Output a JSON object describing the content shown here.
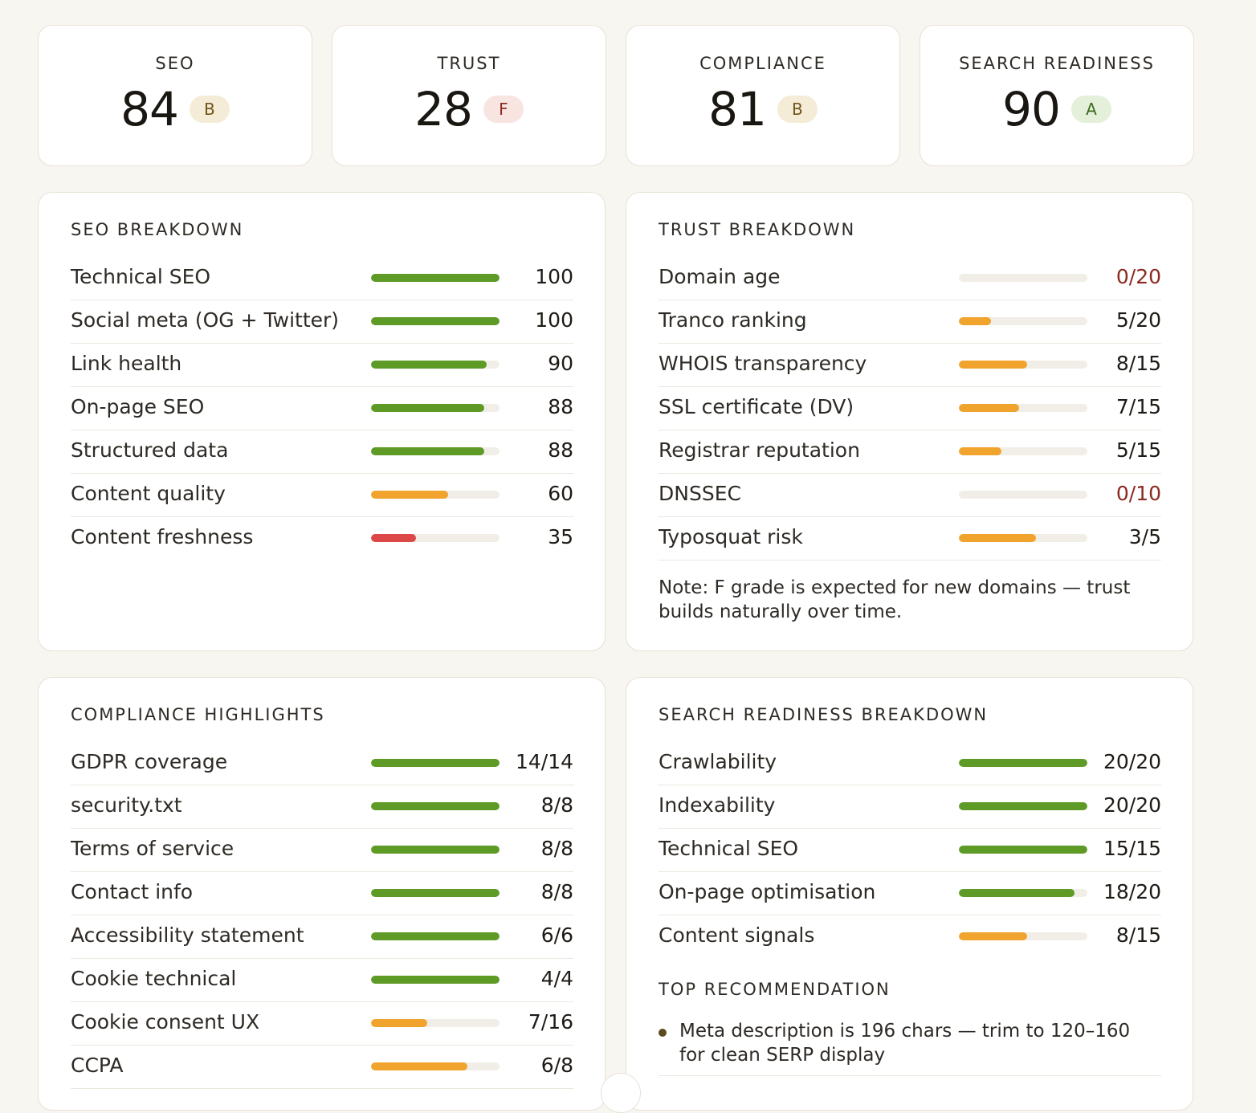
{
  "scores": [
    {
      "label": "SEO",
      "value": "84",
      "grade": "B"
    },
    {
      "label": "TRUST",
      "value": "28",
      "grade": "F"
    },
    {
      "label": "COMPLIANCE",
      "value": "81",
      "grade": "B"
    },
    {
      "label": "SEARCH READINESS",
      "value": "90",
      "grade": "A"
    }
  ],
  "seo_breakdown": {
    "title": "SEO BREAKDOWN",
    "rows": [
      {
        "label": "Technical SEO",
        "value": "100",
        "fraction": 1.0,
        "status": "green"
      },
      {
        "label": "Social meta (OG + Twitter)",
        "value": "100",
        "fraction": 1.0,
        "status": "green"
      },
      {
        "label": "Link health",
        "value": "90",
        "fraction": 0.9,
        "status": "green"
      },
      {
        "label": "On-page SEO",
        "value": "88",
        "fraction": 0.88,
        "status": "green"
      },
      {
        "label": "Structured data",
        "value": "88",
        "fraction": 0.88,
        "status": "green"
      },
      {
        "label": "Content quality",
        "value": "60",
        "fraction": 0.6,
        "status": "orange"
      },
      {
        "label": "Content freshness",
        "value": "35",
        "fraction": 0.35,
        "status": "red"
      }
    ]
  },
  "trust_breakdown": {
    "title": "TRUST BREAKDOWN",
    "rows": [
      {
        "label": "Domain age",
        "value": "0/20",
        "fraction": 0.0,
        "status": "bad"
      },
      {
        "label": "Tranco ranking",
        "value": "5/20",
        "fraction": 0.25,
        "status": "orange"
      },
      {
        "label": "WHOIS transparency",
        "value": "8/15",
        "fraction": 0.533,
        "status": "orange"
      },
      {
        "label": "SSL certificate (DV)",
        "value": "7/15",
        "fraction": 0.467,
        "status": "orange"
      },
      {
        "label": "Registrar reputation",
        "value": "5/15",
        "fraction": 0.333,
        "status": "orange"
      },
      {
        "label": "DNSSEC",
        "value": "0/10",
        "fraction": 0.0,
        "status": "bad"
      },
      {
        "label": "Typosquat risk",
        "value": "3/5",
        "fraction": 0.6,
        "status": "orange"
      }
    ],
    "note": "Note: F grade is expected for new domains — trust builds naturally over time."
  },
  "compliance_highlights": {
    "title": "COMPLIANCE HIGHLIGHTS",
    "rows": [
      {
        "label": "GDPR coverage",
        "value": "14/14",
        "fraction": 1.0,
        "status": "green"
      },
      {
        "label": "security.txt",
        "value": "8/8",
        "fraction": 1.0,
        "status": "green"
      },
      {
        "label": "Terms of service",
        "value": "8/8",
        "fraction": 1.0,
        "status": "green"
      },
      {
        "label": "Contact info",
        "value": "8/8",
        "fraction": 1.0,
        "status": "green"
      },
      {
        "label": "Accessibility statement",
        "value": "6/6",
        "fraction": 1.0,
        "status": "green"
      },
      {
        "label": "Cookie technical",
        "value": "4/4",
        "fraction": 1.0,
        "status": "green"
      },
      {
        "label": "Cookie consent UX",
        "value": "7/16",
        "fraction": 0.4375,
        "status": "orange"
      },
      {
        "label": "CCPA",
        "value": "6/8",
        "fraction": 0.75,
        "status": "orange"
      }
    ]
  },
  "search_readiness_breakdown": {
    "title": "SEARCH READINESS BREAKDOWN",
    "rows": [
      {
        "label": "Crawlability",
        "value": "20/20",
        "fraction": 1.0,
        "status": "green"
      },
      {
        "label": "Indexability",
        "value": "20/20",
        "fraction": 1.0,
        "status": "green"
      },
      {
        "label": "Technical SEO",
        "value": "15/15",
        "fraction": 1.0,
        "status": "green"
      },
      {
        "label": "On-page optimisation",
        "value": "18/20",
        "fraction": 0.9,
        "status": "green"
      },
      {
        "label": "Content signals",
        "value": "8/15",
        "fraction": 0.533,
        "status": "orange"
      }
    ],
    "top_recommendation_title": "TOP RECOMMENDATION",
    "recommendations": [
      "Meta description is 196 chars — trim to 120–160 for clean SERP display"
    ]
  },
  "colors": {
    "green": "#5e9a26",
    "orange": "#f0a32d",
    "red": "#dc4847",
    "bad_text": "#8b2a20"
  }
}
